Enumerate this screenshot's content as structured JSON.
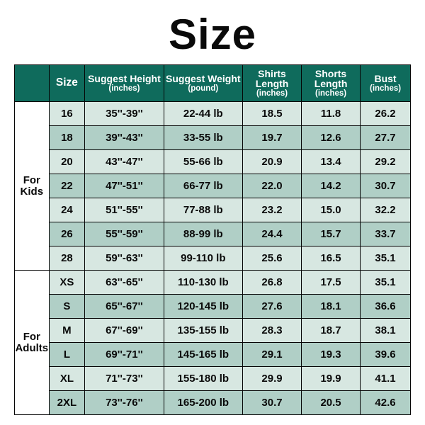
{
  "title": "Size",
  "colors": {
    "header_bg": "#0f6b5c",
    "header_fg": "#ffffff",
    "band_a": "#d7e7e1",
    "band_b": "#b0cfc6",
    "group_bg": "#ffffff",
    "border": "#050505",
    "text": "#0a0a0a"
  },
  "columns": [
    {
      "main": "Size",
      "sub": ""
    },
    {
      "main": "Suggest Height",
      "sub": "(inches)"
    },
    {
      "main": "Suggest Weight",
      "sub": "(pound)"
    },
    {
      "main": "Shirts Length",
      "sub": "(inches)"
    },
    {
      "main": "Shorts Length",
      "sub": "(inches)"
    },
    {
      "main": "Bust",
      "sub": "(inches)"
    }
  ],
  "groups": [
    {
      "label": "For Kids",
      "rows": [
        {
          "size": "16",
          "height": "35''-39''",
          "weight": "22-44 lb",
          "shirts": "18.5",
          "shorts": "11.8",
          "bust": "26.2"
        },
        {
          "size": "18",
          "height": "39''-43''",
          "weight": "33-55 lb",
          "shirts": "19.7",
          "shorts": "12.6",
          "bust": "27.7"
        },
        {
          "size": "20",
          "height": "43''-47''",
          "weight": "55-66 lb",
          "shirts": "20.9",
          "shorts": "13.4",
          "bust": "29.2"
        },
        {
          "size": "22",
          "height": "47''-51''",
          "weight": "66-77 lb",
          "shirts": "22.0",
          "shorts": "14.2",
          "bust": "30.7"
        },
        {
          "size": "24",
          "height": "51''-55''",
          "weight": "77-88 lb",
          "shirts": "23.2",
          "shorts": "15.0",
          "bust": "32.2"
        },
        {
          "size": "26",
          "height": "55''-59''",
          "weight": "88-99 lb",
          "shirts": "24.4",
          "shorts": "15.7",
          "bust": "33.7"
        },
        {
          "size": "28",
          "height": "59''-63''",
          "weight": "99-110 lb",
          "shirts": "25.6",
          "shorts": "16.5",
          "bust": "35.1"
        }
      ]
    },
    {
      "label": "For Adults",
      "rows": [
        {
          "size": "XS",
          "height": "63''-65''",
          "weight": "110-130 lb",
          "shirts": "26.8",
          "shorts": "17.5",
          "bust": "35.1"
        },
        {
          "size": "S",
          "height": "65''-67''",
          "weight": "120-145 lb",
          "shirts": "27.6",
          "shorts": "18.1",
          "bust": "36.6"
        },
        {
          "size": "M",
          "height": "67''-69''",
          "weight": "135-155 lb",
          "shirts": "28.3",
          "shorts": "18.7",
          "bust": "38.1"
        },
        {
          "size": "L",
          "height": "69''-71''",
          "weight": "145-165 lb",
          "shirts": "29.1",
          "shorts": "19.3",
          "bust": "39.6"
        },
        {
          "size": "XL",
          "height": "71''-73''",
          "weight": "155-180 lb",
          "shirts": "29.9",
          "shorts": "19.9",
          "bust": "41.1"
        },
        {
          "size": "2XL",
          "height": "73''-76''",
          "weight": "165-200 lb",
          "shirts": "30.7",
          "shorts": "20.5",
          "bust": "42.6"
        }
      ]
    }
  ]
}
